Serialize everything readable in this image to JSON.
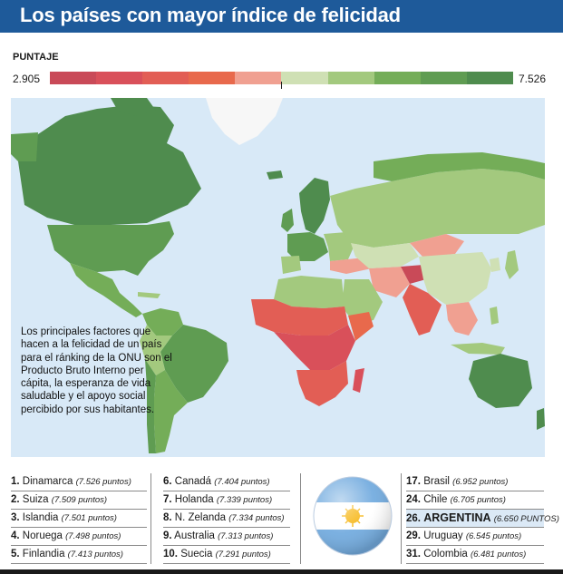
{
  "title": "Los países con mayor índice de felicidad",
  "legend": {
    "title": "PUNTAJE",
    "min": "2.905",
    "max": "7.526",
    "colors": [
      "#c94a58",
      "#d9505a",
      "#e25e55",
      "#e8694c",
      "#f0a091",
      "#cfe0b4",
      "#a3c97e",
      "#74ad58",
      "#5f9c52",
      "#4f8c4e"
    ]
  },
  "note": "Los principales factores que hacen a la felicidad de un país para el ránking de la ONU son el Producto Bruto Interno per cápita, la esperanza de vida saludable y el apoyo social percibido por sus habitantes.",
  "rankings": {
    "column1": [
      {
        "num": "1.",
        "name": "Dinamarca",
        "pts": "(7.526 puntos)"
      },
      {
        "num": "2.",
        "name": "Suiza",
        "pts": "(7.509 puntos)"
      },
      {
        "num": "3.",
        "name": "Islandia",
        "pts": "(7.501 puntos)"
      },
      {
        "num": "4.",
        "name": "Noruega",
        "pts": "(7.498 puntos)"
      },
      {
        "num": "5.",
        "name": "Finlandia",
        "pts": "(7.413 puntos)"
      }
    ],
    "column2": [
      {
        "num": "6.",
        "name": "Canadá",
        "pts": "(7.404 puntos)"
      },
      {
        "num": "7.",
        "name": "Holanda",
        "pts": "(7.339 puntos)"
      },
      {
        "num": "8.",
        "name": "N. Zelanda",
        "pts": "(7.334 puntos)"
      },
      {
        "num": "9.",
        "name": "Australia",
        "pts": "(7.313 puntos)"
      },
      {
        "num": "10.",
        "name": "Suecia",
        "pts": "(7.291 puntos)"
      }
    ],
    "column3": [
      {
        "num": "17.",
        "name": "Brasil",
        "pts": "(6.952 puntos)"
      },
      {
        "num": "24.",
        "name": "Chile",
        "pts": "(6.705 puntos)"
      },
      {
        "num": "26.",
        "name": "ARGENTINA",
        "pts": "(6.650 PUNTOS)"
      },
      {
        "num": "29.",
        "name": "Uruguay",
        "pts": "(6.545 puntos)"
      },
      {
        "num": "31.",
        "name": "Colombia",
        "pts": "(6.481 puntos)"
      }
    ]
  },
  "highlight_country": "ARGENTINA"
}
